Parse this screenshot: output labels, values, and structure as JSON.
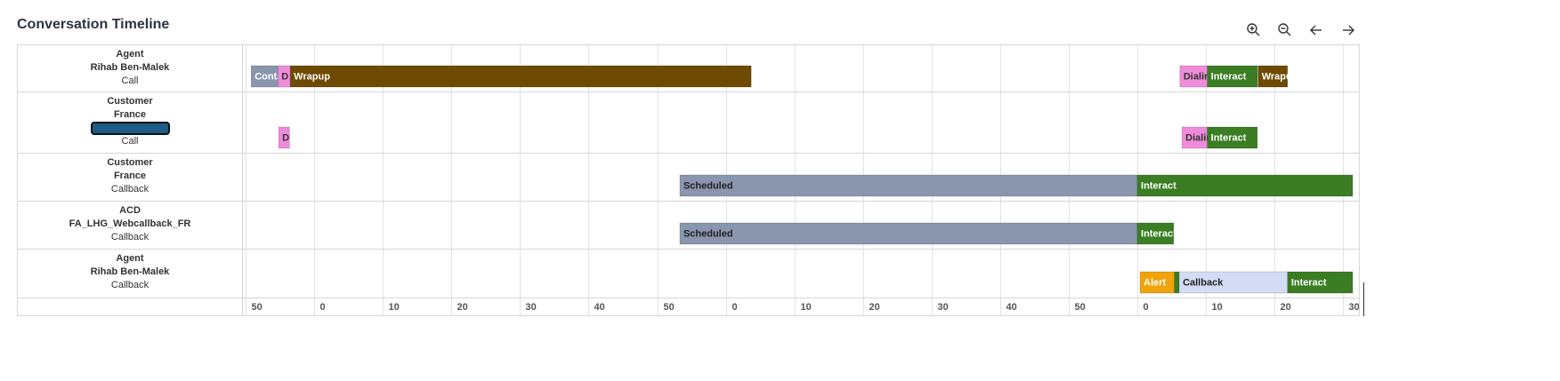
{
  "title": "Conversation Timeline",
  "timeline": {
    "xlim": [
      -10.4,
      152.3
    ],
    "xticks": [
      {
        "value": -10,
        "label": "50"
      },
      {
        "value": 0,
        "label": "0"
      },
      {
        "value": 10,
        "label": "10"
      },
      {
        "value": 20,
        "label": "20"
      },
      {
        "value": 30,
        "label": "30"
      },
      {
        "value": 40,
        "label": "40"
      },
      {
        "value": 50,
        "label": "50"
      },
      {
        "value": 60,
        "label": "0"
      },
      {
        "value": 70,
        "label": "10"
      },
      {
        "value": 80,
        "label": "20"
      },
      {
        "value": 90,
        "label": "30"
      },
      {
        "value": 100,
        "label": "40"
      },
      {
        "value": 110,
        "label": "50"
      },
      {
        "value": 120,
        "label": "0"
      },
      {
        "value": 130,
        "label": "10"
      },
      {
        "value": 140,
        "label": "20"
      },
      {
        "value": 150,
        "label": "30"
      }
    ],
    "rows": [
      {
        "lines": [
          "Agent",
          "Rihab Ben-Malek"
        ],
        "type": "Call",
        "segments": [
          {
            "label": "Conta",
            "start": -9.2,
            "end": -5.3,
            "color": "#8a95ae",
            "text_color": "#ffffff"
          },
          {
            "label": "D",
            "start": -5.3,
            "end": -3.5,
            "color": "#f08bd9",
            "text_color": "#333333"
          },
          {
            "label": "Wrapup",
            "start": -3.5,
            "end": 63.7,
            "color": "#6e4b00",
            "text_color": "#ffffff"
          },
          {
            "label": "Dialin",
            "start": 126.2,
            "end": 130.2,
            "color": "#f08bd9",
            "text_color": "#333333"
          },
          {
            "label": "Interact",
            "start": 130.2,
            "end": 137.5,
            "color": "#3b7d23",
            "text_color": "#ffffff"
          },
          {
            "label": "Wrapu",
            "start": 137.6,
            "end": 141.9,
            "color": "#6e4b00",
            "text_color": "#ffffff"
          }
        ]
      },
      {
        "lines": [
          "Customer",
          "France"
        ],
        "redacted": true,
        "type": "Call",
        "segments": [
          {
            "label": "D",
            "start": -5.2,
            "end": -3.6,
            "color": "#f08bd9",
            "text_color": "#333333"
          },
          {
            "label": "Dialin",
            "start": 126.5,
            "end": 130.2,
            "color": "#f08bd9",
            "text_color": "#333333"
          },
          {
            "label": "Interact",
            "start": 130.2,
            "end": 137.5,
            "color": "#3b7d23",
            "text_color": "#ffffff"
          }
        ]
      },
      {
        "lines": [
          "Customer",
          "France"
        ],
        "type": "Callback",
        "segments": [
          {
            "label": "Scheduled",
            "start": 53.3,
            "end": 120,
            "color": "#8a95ae",
            "text_color": "#222222"
          },
          {
            "label": "Interact",
            "start": 120,
            "end": 151.4,
            "color": "#3b7d23",
            "text_color": "#ffffff"
          }
        ]
      },
      {
        "lines": [
          "ACD",
          "FA_LHG_Webcallback_FR"
        ],
        "type": "Callback",
        "segments": [
          {
            "label": "Scheduled",
            "start": 53.3,
            "end": 120,
            "color": "#8a95ae",
            "text_color": "#222222"
          },
          {
            "label": "Interact",
            "start": 120,
            "end": 125.3,
            "color": "#3b7d23",
            "text_color": "#ffffff"
          }
        ]
      },
      {
        "lines": [
          "Agent",
          "Rihab Ben-Malek"
        ],
        "type": "Callback",
        "segments": [
          {
            "label": "Alert",
            "start": 120.4,
            "end": 125.4,
            "color": "#f0a30a",
            "text_color": "#ffffff"
          },
          {
            "start": 125.4,
            "end": 126.1,
            "color": "#3b7d23"
          },
          {
            "label": "Callback",
            "start": 126.1,
            "end": 141.9,
            "color": "#d3dbf5",
            "text_color": "#222222"
          },
          {
            "label": "Interact",
            "start": 141.9,
            "end": 151.4,
            "color": "#3b7d23",
            "text_color": "#ffffff"
          }
        ]
      }
    ]
  }
}
